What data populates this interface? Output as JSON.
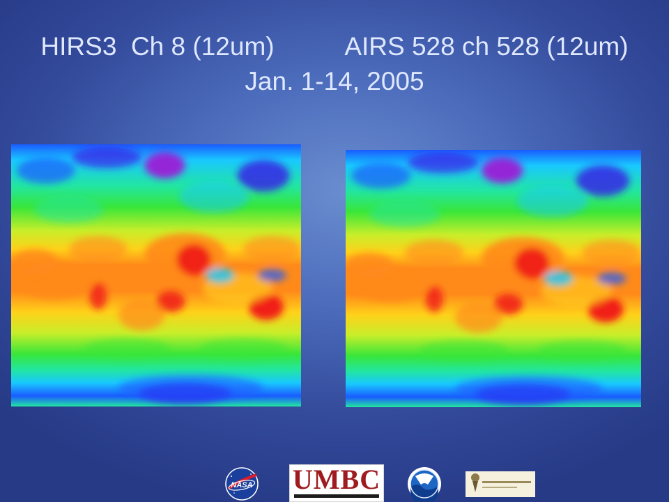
{
  "slide": {
    "title_line1": "HIRS3  Ch 8 (12um)          AIRS 528 ch 528 (12um)",
    "title_line2": "Jan. 1-14, 2005"
  },
  "maps": [
    {
      "instrument": "HIRS3",
      "channel": "Ch 8 (12um)"
    },
    {
      "instrument": "AIRS",
      "channel": "528 ch 528 (12um)"
    }
  ],
  "colors": {
    "background": "#4c6cbc",
    "title_text": "#dfe8ff",
    "colormap": [
      "#9b1fd6",
      "#3a18e6",
      "#1a5cff",
      "#19c8ff",
      "#22e6a0",
      "#39e639",
      "#c8ee2a",
      "#ffd11a",
      "#ff8a1a",
      "#f01818"
    ]
  },
  "logos": {
    "umbc": "UMBC",
    "icons": [
      "nasa-logo",
      "umbc-logo",
      "noaa-logo",
      "innovim-logo"
    ]
  }
}
